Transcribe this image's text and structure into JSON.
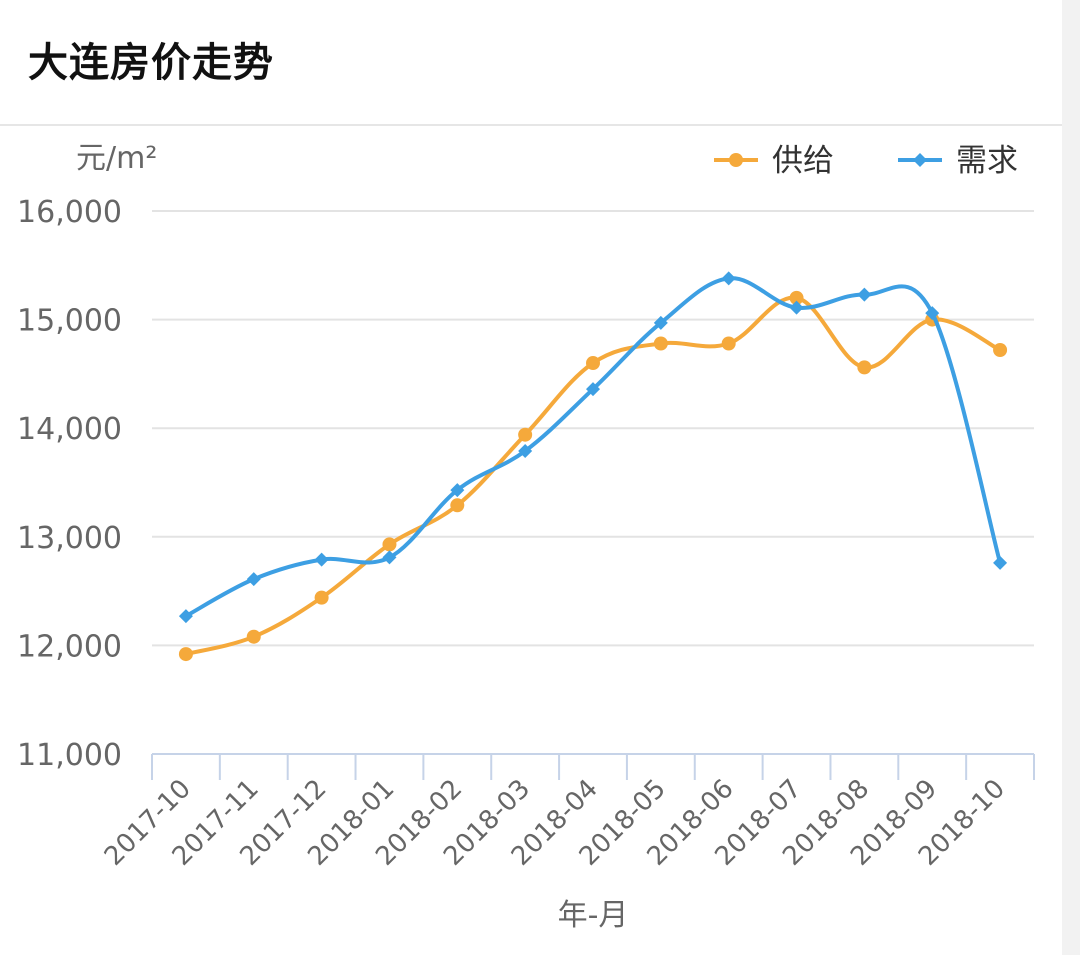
{
  "page": {
    "title": "大连房价走势"
  },
  "chart_data": {
    "type": "line",
    "title": "大连房价走势",
    "unit_label": "元/m²",
    "xlabel": "年-月",
    "ylabel": "元/m²",
    "ylim": [
      11000,
      16000
    ],
    "yticks": [
      11000,
      12000,
      13000,
      14000,
      15000,
      16000
    ],
    "ytick_labels": [
      "11,000",
      "12,000",
      "13,000",
      "14,000",
      "15,000",
      "16,000"
    ],
    "grid": true,
    "legend_position": "top-right",
    "categories": [
      "2017-10",
      "2017-11",
      "2017-12",
      "2018-01",
      "2018-02",
      "2018-03",
      "2018-04",
      "2018-05",
      "2018-06",
      "2018-07",
      "2018-08",
      "2018-09",
      "2018-10"
    ],
    "series": [
      {
        "name": "供给",
        "color": "#f5a93b",
        "marker": "circle",
        "values": [
          11920,
          12080,
          12440,
          12930,
          13290,
          13940,
          14600,
          14780,
          14780,
          15200,
          14560,
          15000,
          14720
        ]
      },
      {
        "name": "需求",
        "color": "#3d9fe3",
        "marker": "diamond",
        "values": [
          12270,
          12610,
          12790,
          12810,
          13430,
          13790,
          14360,
          14970,
          15380,
          15110,
          15230,
          15060,
          12760
        ]
      }
    ]
  }
}
